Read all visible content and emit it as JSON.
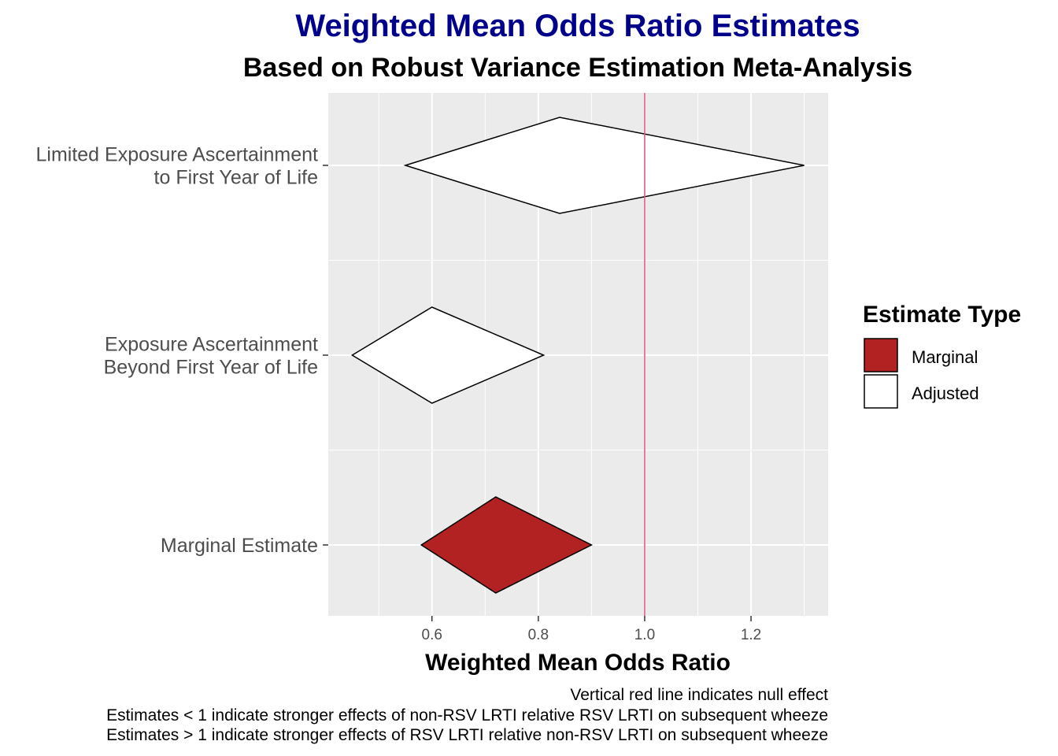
{
  "chart_data": {
    "type": "forest",
    "title": "Weighted Mean Odds Ratio Estimates",
    "subtitle": "Based on Robust Variance Estimation Meta-Analysis",
    "xlabel": "Weighted Mean Odds Ratio",
    "ylabel": "",
    "xlim": [
      0.405,
      1.345
    ],
    "x_ticks": [
      "0.6",
      "0.8",
      "1.0",
      "1.2"
    ],
    "reference_line": {
      "x": 1.0,
      "color": "#D6577A"
    },
    "categories": [
      {
        "label_lines": [
          "Limited Exposure Ascertainment",
          "to First Year of Life"
        ]
      },
      {
        "label_lines": [
          "Exposure Ascertainment",
          "Beyond First Year of Life"
        ]
      },
      {
        "label_lines": [
          "Marginal Estimate"
        ]
      }
    ],
    "series": [
      {
        "name": "Marginal",
        "color": "#B22222",
        "points": [
          {
            "category_index": 2,
            "estimate": 0.72,
            "lower": 0.58,
            "upper": 0.9
          }
        ]
      },
      {
        "name": "Adjusted",
        "color": "#FFFFFF",
        "points": [
          {
            "category_index": 0,
            "estimate": 0.84,
            "lower": 0.55,
            "upper": 1.3
          },
          {
            "category_index": 1,
            "estimate": 0.6,
            "lower": 0.45,
            "upper": 0.81
          }
        ]
      }
    ],
    "legend": {
      "title": "Estimate Type",
      "position": "right",
      "items": [
        {
          "label": "Marginal",
          "fill": "#B22222"
        },
        {
          "label": "Adjusted",
          "fill": "#FFFFFF"
        }
      ]
    },
    "caption_lines": [
      "Vertical red line indicates null effect",
      "Estimates < 1 indicate stronger effects of non-RSV LRTI relative RSV LRTI on subsequent wheeze",
      "Estimates > 1 indicate stronger effects of RSV LRTI relative non-RSV LRTI on subsequent wheeze"
    ],
    "panel_background": "#EBEBEB",
    "grid": true
  }
}
